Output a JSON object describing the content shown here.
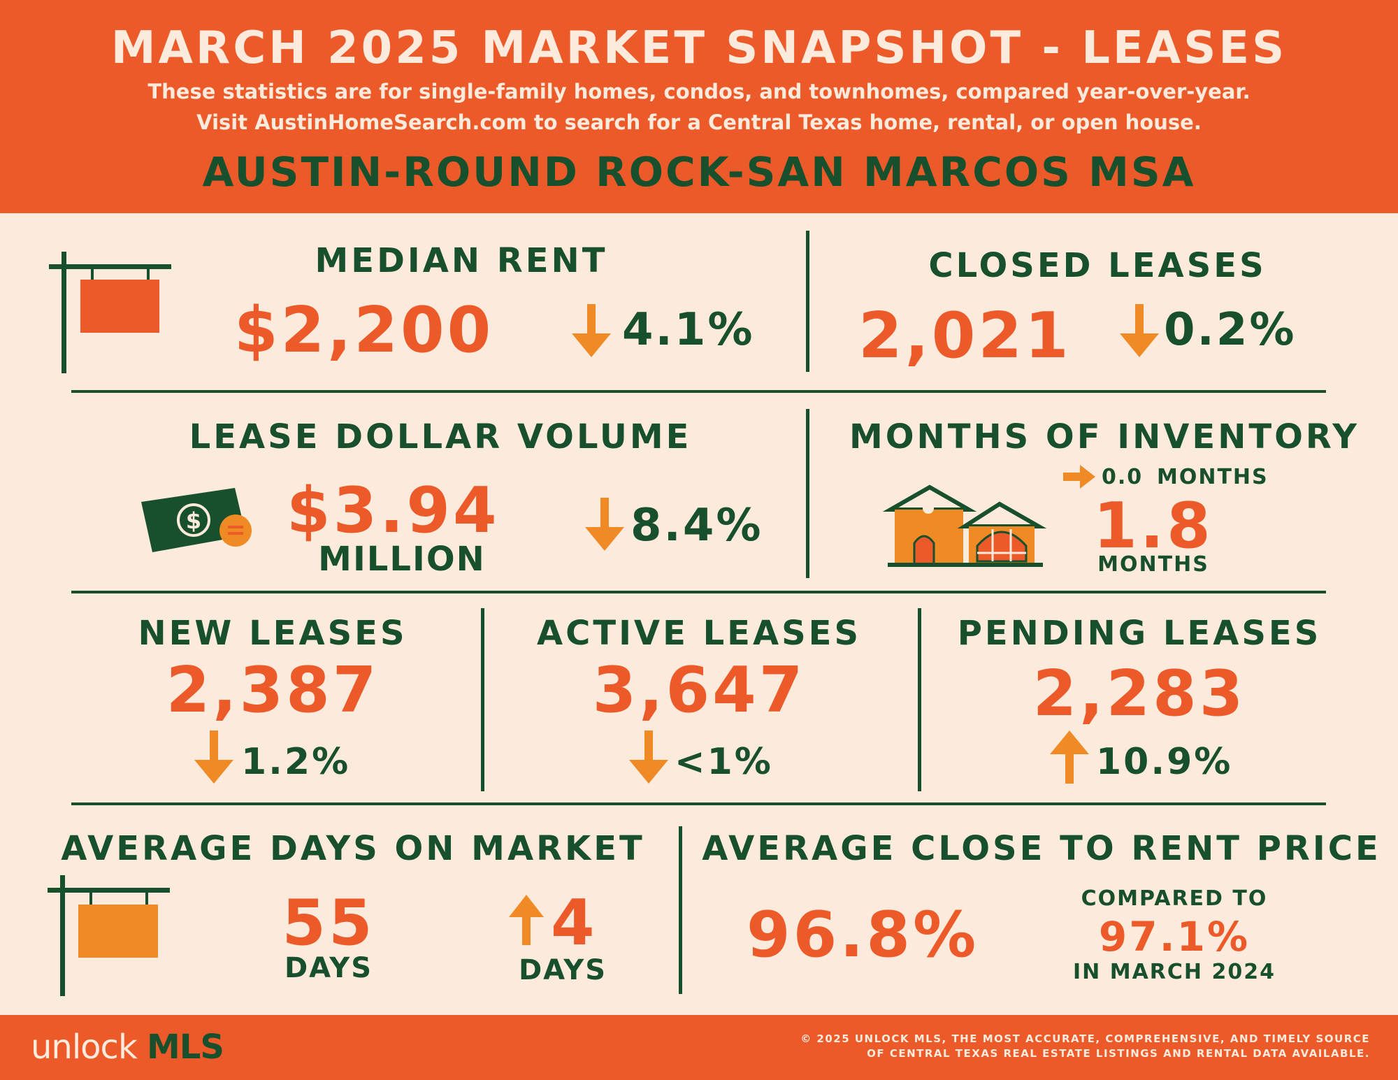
{
  "header": {
    "title": "MARCH 2025 MARKET SNAPSHOT - LEASES",
    "subtitle_1": "These statistics are for single-family homes, condos, and townhomes, compared year-over-year.",
    "subtitle_2": "Visit AustinHomeSearch.com to search for a Central Texas home, rental, or open house.",
    "region": "AUSTIN-ROUND ROCK-SAN MARCOS MSA"
  },
  "median_rent": {
    "label": "MEDIAN RENT",
    "value": "$2,200",
    "change": "4.1%",
    "direction": "down",
    "icon": "sign-post-icon"
  },
  "closed_leases": {
    "label": "CLOSED LEASES",
    "value": "2,021",
    "change": "0.2%",
    "direction": "down"
  },
  "lease_dollar_volume": {
    "label": "LEASE DOLLAR VOLUME",
    "value": "$3.94",
    "unit": "MILLION",
    "change": "8.4%",
    "direction": "down",
    "icon": "money-bill-icon"
  },
  "months_of_inventory": {
    "label": "MONTHS OF INVENTORY",
    "change": "0.0",
    "change_unit": "MONTHS",
    "direction": "flat",
    "value": "1.8",
    "unit": "MONTHS",
    "icon": "house-icon"
  },
  "new_leases": {
    "label": "NEW LEASES",
    "value": "2,387",
    "change": "1.2%",
    "direction": "down"
  },
  "active_leases": {
    "label": "ACTIVE LEASES",
    "value": "3,647",
    "change": "<1%",
    "direction": "down"
  },
  "pending_leases": {
    "label": "PENDING LEASES",
    "value": "2,283",
    "change": "10.9%",
    "direction": "up"
  },
  "avg_days_on_market": {
    "label": "AVERAGE DAYS ON MARKET",
    "value": "55",
    "unit": "DAYS",
    "change": "4",
    "change_unit": "DAYS",
    "direction": "up",
    "icon": "sign-post-icon"
  },
  "avg_close_to_rent": {
    "label": "AVERAGE CLOSE TO RENT PRICE",
    "value": "96.8%",
    "compare_label": "COMPARED TO",
    "compare_value": "97.1%",
    "compare_period": "IN MARCH 2024"
  },
  "footer": {
    "logo_part1": "unlock",
    "logo_part2": "MLS",
    "copyright_1": "© 2025 UNLOCK MLS, THE MOST ACCURATE, COMPREHENSIVE, AND TIMELY SOURCE",
    "copyright_2": "OF CENTRAL TEXAS REAL ESTATE LISTINGS AND RENTAL DATA AVAILABLE."
  },
  "colors": {
    "orange": "#ed5a29",
    "amber": "#f08a24",
    "green": "#18502d",
    "cream": "#fcebdc"
  }
}
